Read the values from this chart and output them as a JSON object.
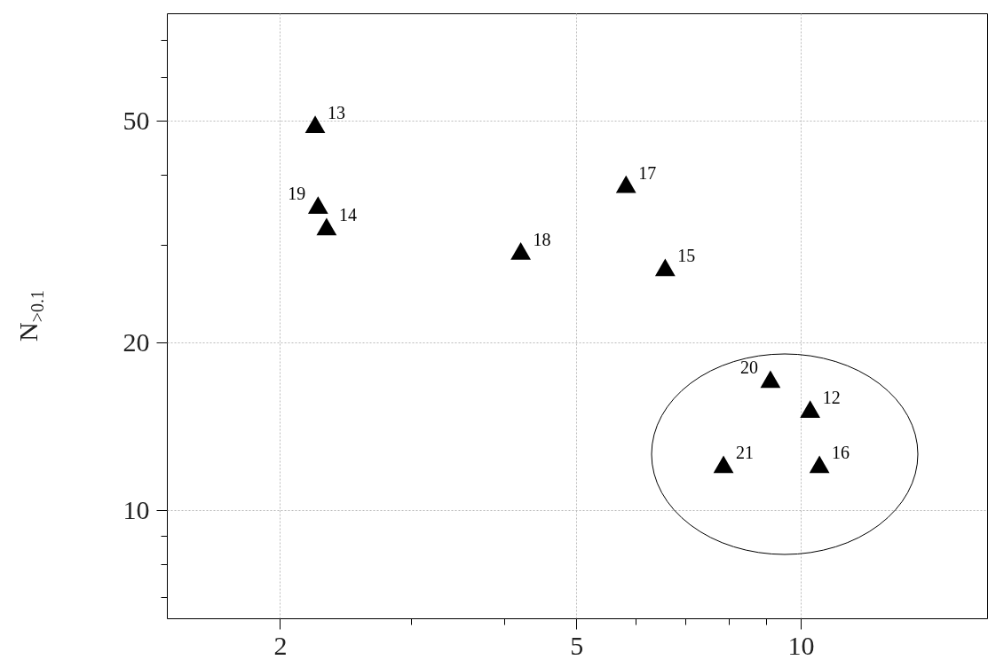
{
  "chart_data": {
    "type": "scatter",
    "ylabel": "N$_{>0.1}$",
    "log": "xy",
    "grid": true,
    "marker": "triangle",
    "xlim": [
      1.41,
      17.8
    ],
    "ylim": [
      6.4,
      78
    ],
    "xticks": [
      2,
      {
        "value": 3,
        "label": null
      },
      {
        "value": 4,
        "label": null
      },
      5,
      {
        "value": 6,
        "label": null
      },
      {
        "value": 7,
        "label": null
      },
      {
        "value": 8,
        "label": null
      },
      {
        "value": 9,
        "label": null
      },
      10
    ],
    "yticks": [
      {
        "value": 7,
        "label": null
      },
      {
        "value": 8,
        "label": null
      },
      {
        "value": 9,
        "label": null
      },
      10,
      20,
      {
        "value": 30,
        "label": null
      },
      {
        "value": 40,
        "label": null
      },
      50,
      {
        "value": 60,
        "label": null
      },
      {
        "value": 70,
        "label": null
      }
    ],
    "series": [
      {
        "color": "#000000",
        "x": [
          2.23,
          2.25,
          2.31,
          4.21,
          5.83,
          6.58,
          9.11,
          10.3,
          7.88,
          10.6
        ],
        "values": [
          49.3,
          35.3,
          32.3,
          29.2,
          38.5,
          27.3,
          17.2,
          15.2,
          12.1,
          12.1
        ]
      }
    ],
    "annotations": [
      {
        "text": "13",
        "x": 2.23,
        "y": 49.3
      },
      {
        "text": "19",
        "x": 2.25,
        "y": 35.3
      },
      {
        "text": "14",
        "x": 2.31,
        "y": 32.3
      },
      {
        "text": "18",
        "x": 4.21,
        "y": 29.2
      },
      {
        "text": "17",
        "x": 5.83,
        "y": 38.5
      },
      {
        "text": "15",
        "x": 6.58,
        "y": 27.3
      },
      {
        "text": "20",
        "x": 9.11,
        "y": 17.2
      },
      {
        "text": "12",
        "x": 10.3,
        "y": 15.2
      },
      {
        "text": "21",
        "x": 7.88,
        "y": 12.1
      },
      {
        "text": "16",
        "x": 10.6,
        "y": 12.1
      }
    ]
  }
}
